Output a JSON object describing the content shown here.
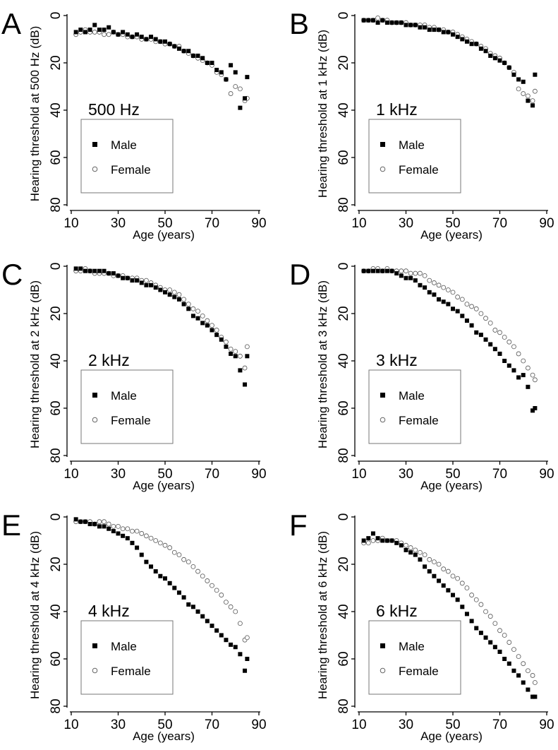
{
  "chart_data": [
    {
      "type": "scatter",
      "panel_label": "A",
      "frequency_label": "500 Hz",
      "xlabel": "Age (years)",
      "ylabel": "Hearing threshold at 500 Hz (dB)",
      "xlim": [
        10,
        90
      ],
      "ylim": [
        0,
        80
      ],
      "y_inverted": true,
      "x_ticks": [
        10,
        30,
        50,
        70,
        90
      ],
      "y_ticks": [
        0,
        20,
        40,
        60,
        80
      ],
      "legend": {
        "male": "Male",
        "female": "Female"
      },
      "series": [
        {
          "name": "Male",
          "marker": "filled-square",
          "x": [
            12,
            14,
            16,
            18,
            20,
            22,
            24,
            26,
            28,
            30,
            32,
            34,
            36,
            38,
            40,
            42,
            44,
            46,
            48,
            50,
            52,
            54,
            56,
            58,
            60,
            62,
            64,
            66,
            68,
            70,
            72,
            74,
            76,
            78,
            80,
            82,
            84,
            85
          ],
          "y": [
            7,
            6,
            7,
            6,
            4,
            6,
            6,
            5,
            7,
            8,
            7,
            8,
            9,
            8,
            9,
            10,
            9,
            10,
            11,
            11,
            12,
            13,
            14,
            15,
            15,
            17,
            17,
            18,
            20,
            20,
            23,
            24,
            27,
            21,
            24,
            39,
            35,
            26
          ]
        },
        {
          "name": "Female",
          "marker": "open-circle",
          "x": [
            12,
            14,
            16,
            18,
            20,
            22,
            24,
            26,
            28,
            30,
            32,
            34,
            36,
            38,
            40,
            42,
            44,
            46,
            48,
            50,
            52,
            54,
            56,
            58,
            60,
            62,
            64,
            66,
            68,
            70,
            72,
            74,
            76,
            78,
            80,
            82,
            84,
            85
          ],
          "y": [
            8,
            7,
            6,
            7,
            7,
            7,
            8,
            8,
            7,
            8,
            8,
            9,
            9,
            9,
            10,
            10,
            10,
            11,
            11,
            12,
            12,
            13,
            13,
            15,
            16,
            17,
            18,
            19,
            20,
            21,
            24,
            25,
            27,
            33,
            30,
            31,
            36,
            35
          ]
        }
      ]
    },
    {
      "type": "scatter",
      "panel_label": "B",
      "frequency_label": "1 kHz",
      "xlabel": "Age (years)",
      "ylabel": "Hearing threshold at 1 kHz (dB)",
      "xlim": [
        10,
        90
      ],
      "ylim": [
        0,
        80
      ],
      "y_inverted": true,
      "x_ticks": [
        10,
        30,
        50,
        70,
        90
      ],
      "y_ticks": [
        0,
        20,
        40,
        60,
        80
      ],
      "legend": {
        "male": "Male",
        "female": "Female"
      },
      "series": [
        {
          "name": "Male",
          "marker": "filled-square",
          "x": [
            12,
            14,
            16,
            18,
            20,
            22,
            24,
            26,
            28,
            30,
            32,
            34,
            36,
            38,
            40,
            42,
            44,
            46,
            48,
            50,
            52,
            54,
            56,
            58,
            60,
            62,
            64,
            66,
            68,
            70,
            72,
            74,
            76,
            78,
            80,
            82,
            84,
            85
          ],
          "y": [
            2,
            2,
            2,
            3,
            2,
            3,
            3,
            3,
            3,
            4,
            4,
            4,
            5,
            5,
            6,
            6,
            6,
            7,
            7,
            8,
            9,
            10,
            11,
            12,
            12,
            14,
            15,
            17,
            18,
            19,
            20,
            22,
            25,
            27,
            28,
            36,
            38,
            25
          ]
        },
        {
          "name": "Female",
          "marker": "open-circle",
          "x": [
            12,
            14,
            16,
            18,
            20,
            22,
            24,
            26,
            28,
            30,
            32,
            34,
            36,
            38,
            40,
            42,
            44,
            46,
            48,
            50,
            52,
            54,
            56,
            58,
            60,
            62,
            64,
            66,
            68,
            70,
            72,
            74,
            76,
            78,
            80,
            82,
            84,
            85
          ],
          "y": [
            2,
            2,
            2,
            1,
            2,
            2,
            3,
            3,
            3,
            3,
            4,
            4,
            4,
            4,
            5,
            5,
            6,
            6,
            7,
            7,
            8,
            9,
            10,
            11,
            12,
            13,
            14,
            16,
            17,
            18,
            20,
            22,
            24,
            31,
            33,
            34,
            36,
            32
          ]
        }
      ]
    },
    {
      "type": "scatter",
      "panel_label": "C",
      "frequency_label": "2 kHz",
      "xlabel": "Age (years)",
      "ylabel": "Hearing threshold at 2 kHz (dB)",
      "xlim": [
        10,
        90
      ],
      "ylim": [
        0,
        80
      ],
      "y_inverted": true,
      "x_ticks": [
        10,
        30,
        50,
        70,
        90
      ],
      "y_ticks": [
        0,
        20,
        40,
        60,
        80
      ],
      "legend": {
        "male": "Male",
        "female": "Female"
      },
      "series": [
        {
          "name": "Male",
          "marker": "filled-square",
          "x": [
            12,
            14,
            16,
            18,
            20,
            22,
            24,
            26,
            28,
            30,
            32,
            34,
            36,
            38,
            40,
            42,
            44,
            46,
            48,
            50,
            52,
            54,
            56,
            58,
            60,
            62,
            64,
            66,
            68,
            70,
            72,
            74,
            76,
            78,
            80,
            82,
            84,
            85
          ],
          "y": [
            1,
            1,
            2,
            2,
            2,
            2,
            2,
            3,
            3,
            4,
            5,
            5,
            6,
            6,
            7,
            8,
            8,
            9,
            10,
            11,
            12,
            13,
            14,
            16,
            18,
            21,
            22,
            24,
            25,
            27,
            29,
            31,
            34,
            37,
            38,
            44,
            50,
            38
          ]
        },
        {
          "name": "Female",
          "marker": "open-circle",
          "x": [
            12,
            14,
            16,
            18,
            20,
            22,
            24,
            26,
            28,
            30,
            32,
            34,
            36,
            38,
            40,
            42,
            44,
            46,
            48,
            50,
            52,
            54,
            56,
            58,
            60,
            62,
            64,
            66,
            68,
            70,
            72,
            74,
            76,
            78,
            80,
            82,
            84,
            85
          ],
          "y": [
            2,
            2,
            1,
            2,
            3,
            3,
            3,
            3,
            4,
            4,
            4,
            5,
            5,
            5,
            6,
            6,
            7,
            8,
            9,
            10,
            10,
            11,
            12,
            14,
            16,
            18,
            19,
            21,
            23,
            25,
            27,
            30,
            32,
            35,
            36,
            38,
            43,
            34
          ]
        }
      ]
    },
    {
      "type": "scatter",
      "panel_label": "D",
      "frequency_label": "3 kHz",
      "xlabel": "Age (years)",
      "ylabel": "Hearing threshold at 3 kHz (dB)",
      "xlim": [
        10,
        90
      ],
      "ylim": [
        0,
        80
      ],
      "y_inverted": true,
      "x_ticks": [
        10,
        30,
        50,
        70,
        90
      ],
      "y_ticks": [
        0,
        20,
        40,
        60,
        80
      ],
      "legend": {
        "male": "Male",
        "female": "Female"
      },
      "series": [
        {
          "name": "Male",
          "marker": "filled-square",
          "x": [
            12,
            14,
            16,
            18,
            20,
            22,
            24,
            26,
            28,
            30,
            32,
            34,
            36,
            38,
            40,
            42,
            44,
            46,
            48,
            50,
            52,
            54,
            56,
            58,
            60,
            62,
            64,
            66,
            68,
            70,
            72,
            74,
            76,
            78,
            80,
            82,
            84,
            85
          ],
          "y": [
            2,
            2,
            2,
            2,
            2,
            2,
            2,
            3,
            4,
            5,
            5,
            6,
            8,
            9,
            11,
            12,
            14,
            15,
            16,
            18,
            19,
            21,
            23,
            25,
            28,
            29,
            31,
            33,
            35,
            37,
            40,
            42,
            44,
            47,
            46,
            51,
            61,
            60
          ]
        },
        {
          "name": "Female",
          "marker": "open-circle",
          "x": [
            12,
            14,
            16,
            18,
            20,
            22,
            24,
            26,
            28,
            30,
            32,
            34,
            36,
            38,
            40,
            42,
            44,
            46,
            48,
            50,
            52,
            54,
            56,
            58,
            60,
            62,
            64,
            66,
            68,
            70,
            72,
            74,
            76,
            78,
            80,
            82,
            84,
            85
          ],
          "y": [
            2,
            2,
            1,
            1,
            2,
            1,
            2,
            2,
            2,
            2,
            3,
            3,
            3,
            4,
            6,
            7,
            8,
            9,
            10,
            11,
            13,
            14,
            16,
            17,
            18,
            20,
            22,
            24,
            27,
            28,
            30,
            32,
            34,
            37,
            40,
            43,
            46,
            48
          ]
        }
      ]
    },
    {
      "type": "scatter",
      "panel_label": "E",
      "frequency_label": "4 kHz",
      "xlabel": "Age (years)",
      "ylabel": "Hearing threshold at 4 kHz (dB)",
      "xlim": [
        10,
        90
      ],
      "ylim": [
        0,
        80
      ],
      "y_inverted": true,
      "x_ticks": [
        10,
        30,
        50,
        70,
        90
      ],
      "y_ticks": [
        0,
        20,
        40,
        60,
        80
      ],
      "legend": {
        "male": "Male",
        "female": "Female"
      },
      "series": [
        {
          "name": "Male",
          "marker": "filled-square",
          "x": [
            12,
            14,
            16,
            18,
            20,
            22,
            24,
            26,
            28,
            30,
            32,
            34,
            36,
            38,
            40,
            42,
            44,
            46,
            48,
            50,
            52,
            54,
            56,
            58,
            60,
            62,
            64,
            66,
            68,
            70,
            72,
            74,
            76,
            78,
            80,
            82,
            84,
            85
          ],
          "y": [
            1,
            2,
            2,
            3,
            3,
            4,
            4,
            5,
            6,
            7,
            8,
            9,
            11,
            13,
            16,
            19,
            21,
            23,
            25,
            26,
            28,
            30,
            32,
            34,
            37,
            38,
            40,
            42,
            44,
            46,
            48,
            50,
            52,
            54,
            55,
            58,
            65,
            60
          ]
        },
        {
          "name": "Female",
          "marker": "open-circle",
          "x": [
            12,
            14,
            16,
            18,
            20,
            22,
            24,
            26,
            28,
            30,
            32,
            34,
            36,
            38,
            40,
            42,
            44,
            46,
            48,
            50,
            52,
            54,
            56,
            58,
            60,
            62,
            64,
            66,
            68,
            70,
            72,
            74,
            76,
            78,
            80,
            82,
            84,
            85
          ],
          "y": [
            2,
            2,
            2,
            2,
            3,
            2,
            2,
            3,
            4,
            4,
            5,
            5,
            6,
            6,
            7,
            8,
            9,
            10,
            11,
            12,
            13,
            15,
            16,
            18,
            19,
            21,
            23,
            25,
            27,
            29,
            31,
            33,
            36,
            38,
            40,
            45,
            52,
            51
          ]
        }
      ]
    },
    {
      "type": "scatter",
      "panel_label": "F",
      "frequency_label": "6 kHz",
      "xlabel": "Age (years)",
      "ylabel": "Hearing threshold at 6 kHz (dB)",
      "xlim": [
        10,
        90
      ],
      "ylim": [
        0,
        80
      ],
      "y_inverted": true,
      "x_ticks": [
        10,
        30,
        50,
        70,
        90
      ],
      "y_ticks": [
        0,
        20,
        40,
        60,
        80
      ],
      "legend": {
        "male": "Male",
        "female": "Female"
      },
      "series": [
        {
          "name": "Male",
          "marker": "filled-square",
          "x": [
            12,
            14,
            16,
            18,
            20,
            22,
            24,
            26,
            28,
            30,
            32,
            34,
            36,
            38,
            40,
            42,
            44,
            46,
            48,
            50,
            52,
            54,
            56,
            58,
            60,
            62,
            64,
            66,
            68,
            70,
            72,
            74,
            76,
            78,
            80,
            82,
            84,
            85
          ],
          "y": [
            10,
            9,
            7,
            9,
            10,
            10,
            10,
            11,
            12,
            14,
            15,
            16,
            18,
            21,
            23,
            25,
            27,
            29,
            31,
            33,
            35,
            38,
            41,
            44,
            47,
            49,
            51,
            53,
            55,
            57,
            60,
            62,
            65,
            67,
            70,
            73,
            76,
            76
          ]
        },
        {
          "name": "Female",
          "marker": "open-circle",
          "x": [
            12,
            14,
            16,
            18,
            20,
            22,
            24,
            26,
            28,
            30,
            32,
            34,
            36,
            38,
            40,
            42,
            44,
            46,
            48,
            50,
            52,
            54,
            56,
            58,
            60,
            62,
            64,
            66,
            68,
            70,
            72,
            74,
            76,
            78,
            80,
            82,
            84,
            85
          ],
          "y": [
            11,
            11,
            10,
            10,
            9,
            10,
            10,
            10,
            11,
            12,
            13,
            14,
            15,
            16,
            18,
            19,
            20,
            22,
            23,
            25,
            26,
            28,
            30,
            33,
            35,
            37,
            40,
            42,
            45,
            48,
            50,
            53,
            56,
            59,
            62,
            65,
            67,
            70
          ]
        }
      ]
    }
  ]
}
